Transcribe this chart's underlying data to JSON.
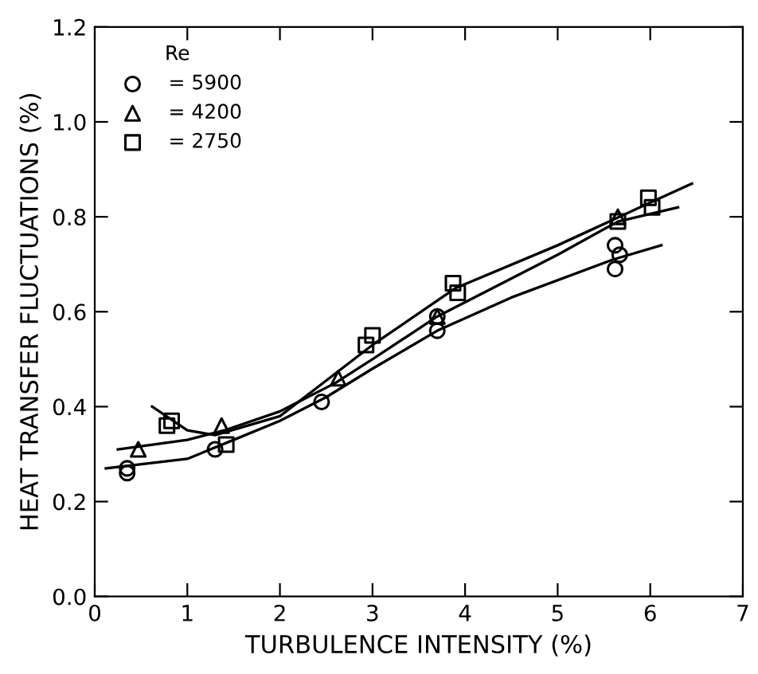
{
  "chart_data": {
    "type": "scatter",
    "xlabel": "TURBULENCE INTENSITY (%)",
    "ylabel": "HEAT TRANSFER FLUCTUATIONS (%)",
    "legend_title": "Re",
    "legend": "top left",
    "grid": false,
    "xlim": [
      0,
      7
    ],
    "ylim": [
      0,
      1.2
    ],
    "xticks": [
      0,
      1,
      2,
      3,
      4,
      5,
      6,
      7
    ],
    "yticks": [
      {
        "value": 0,
        "label": "0.0"
      },
      {
        "value": 0.2,
        "label": "0.2"
      },
      {
        "value": 0.4,
        "label": "0.4"
      },
      {
        "value": 0.6,
        "label": "0.6"
      },
      {
        "value": 0.8,
        "label": "0.8"
      },
      {
        "value": 1.0,
        "label": "1.0"
      },
      {
        "value": 1.2,
        "label": "1.2"
      }
    ],
    "series": [
      {
        "name": "= 5900",
        "marker": "circle",
        "color": "#000000",
        "x": [
          0.35,
          0.35,
          1.3,
          2.45,
          3.7,
          3.7,
          5.62,
          5.67,
          5.62
        ],
        "values": [
          0.27,
          0.26,
          0.31,
          0.41,
          0.59,
          0.56,
          0.74,
          0.72,
          0.69
        ]
      },
      {
        "name": "= 4200",
        "marker": "triangle",
        "color": "#000000",
        "x": [
          0.47,
          1.37,
          2.63,
          3.7,
          5.65
        ],
        "values": [
          0.31,
          0.36,
          0.46,
          0.59,
          0.8
        ]
      },
      {
        "name": "= 2750",
        "marker": "square",
        "color": "#000000",
        "x": [
          0.83,
          0.78,
          1.42,
          3.0,
          2.93,
          3.87,
          3.92,
          5.98,
          6.02,
          5.65
        ],
        "values": [
          0.37,
          0.36,
          0.32,
          0.55,
          0.53,
          0.66,
          0.64,
          0.84,
          0.82,
          0.79
        ]
      },
      {
        "type": "line",
        "marker": "none",
        "line_style": "solid",
        "color": "#000000",
        "x": [
          0.62,
          1.0,
          1.3,
          2.0,
          2.6,
          3.0,
          3.9,
          5.0,
          6.0,
          6.45
        ],
        "values": [
          0.4,
          0.35,
          0.34,
          0.38,
          0.47,
          0.53,
          0.65,
          0.74,
          0.83,
          0.87
        ]
      },
      {
        "type": "line",
        "marker": "none",
        "line_style": "solid",
        "color": "#000000",
        "x": [
          0.25,
          1.0,
          1.4,
          2.0,
          2.6,
          3.0,
          3.7,
          5.0,
          5.65,
          6.3
        ],
        "values": [
          0.31,
          0.33,
          0.35,
          0.39,
          0.45,
          0.5,
          0.59,
          0.72,
          0.79,
          0.82
        ]
      },
      {
        "type": "line",
        "marker": "none",
        "line_style": "solid",
        "color": "#000000",
        "x": [
          0.12,
          1.0,
          1.5,
          2.0,
          2.5,
          3.0,
          3.7,
          4.5,
          5.6,
          6.12
        ],
        "values": [
          0.27,
          0.29,
          0.33,
          0.37,
          0.42,
          0.48,
          0.56,
          0.63,
          0.71,
          0.74
        ]
      }
    ]
  }
}
